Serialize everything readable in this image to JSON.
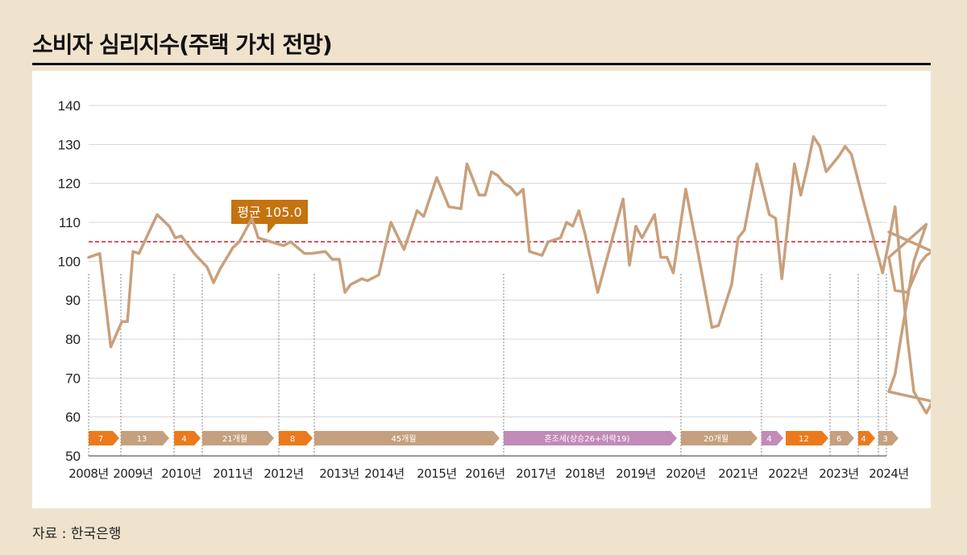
{
  "title": "소비자 심리지수(주택 가치 전망)",
  "source": "자료 : 한국은행",
  "colors": {
    "line": "#c8a07c",
    "avg": "#cc1f2c",
    "callout": "#c4730f",
    "orange": "#ec7a1c",
    "tan": "#c4a07e",
    "purple": "#c28ab8"
  },
  "chart_data": {
    "type": "line",
    "ylim": [
      50,
      140
    ],
    "yticks": [
      "140",
      "130",
      "120",
      "110",
      "100",
      "90",
      "80",
      "70",
      "60",
      "50"
    ],
    "xticks": [
      "2008년",
      "2009년",
      "2010년",
      "2011년",
      "2012년",
      "2013년",
      "2014년",
      "2015년",
      "2016년",
      "2017년",
      "2018년",
      "2019년",
      "2020년",
      "2021년",
      "2022년",
      "2023년",
      "2024년"
    ],
    "average": {
      "value": 105.0,
      "label": "평균 105.0"
    },
    "series": [
      {
        "values": [
          [
            2008.0,
            101
          ],
          [
            2008.25,
            102
          ],
          [
            2008.5,
            78
          ],
          [
            2008.75,
            84.5
          ],
          [
            2008.875,
            84.5
          ],
          [
            2009.0,
            102.5
          ],
          [
            2009.125,
            102
          ],
          [
            2009.5,
            112
          ],
          [
            2009.75,
            109
          ],
          [
            2009.875,
            106
          ],
          [
            2010.0,
            106.5
          ],
          [
            2010.25,
            102
          ],
          [
            2010.5,
            98.5
          ],
          [
            2010.625,
            94.5
          ],
          [
            2010.75,
            98
          ],
          [
            2011.0,
            103.5
          ],
          [
            2011.125,
            105
          ],
          [
            2011.375,
            111
          ],
          [
            2011.5,
            106
          ],
          [
            2011.75,
            105
          ],
          [
            2012.0,
            104
          ],
          [
            2012.125,
            105
          ],
          [
            2012.375,
            102
          ],
          [
            2012.5,
            102
          ],
          [
            2012.75,
            102.5
          ],
          [
            2012.875,
            100.5
          ],
          [
            2013.0,
            100.5
          ],
          [
            2013.125,
            92
          ],
          [
            2013.25,
            94
          ],
          [
            2013.5,
            95.5
          ],
          [
            2013.625,
            95
          ],
          [
            2013.875,
            96.5
          ],
          [
            2014.125,
            110
          ],
          [
            2014.375,
            103
          ],
          [
            2014.625,
            113
          ],
          [
            2014.75,
            111.5
          ],
          [
            2015.0,
            121.5
          ],
          [
            2015.25,
            114
          ],
          [
            2015.5,
            113.5
          ],
          [
            2015.625,
            125
          ],
          [
            2015.875,
            117
          ],
          [
            2016.0,
            117
          ],
          [
            2016.125,
            123
          ],
          [
            2016.25,
            122
          ],
          [
            2016.375,
            120
          ],
          [
            2016.5,
            119
          ],
          [
            2016.625,
            117
          ],
          [
            2016.75,
            118.5
          ],
          [
            2016.875,
            102.5
          ],
          [
            2017.125,
            101.5
          ],
          [
            2017.25,
            105
          ],
          [
            2017.5,
            106
          ],
          [
            2017.625,
            110
          ],
          [
            2017.75,
            109
          ],
          [
            2017.875,
            113
          ],
          [
            2018.0,
            107
          ],
          [
            2018.25,
            92
          ],
          [
            2018.5,
            104
          ],
          [
            2018.75,
            116
          ],
          [
            2018.875,
            99
          ],
          [
            2019.0,
            109
          ],
          [
            2019.125,
            106
          ],
          [
            2019.375,
            112
          ],
          [
            2019.5,
            101
          ],
          [
            2019.625,
            101
          ],
          [
            2019.75,
            97
          ],
          [
            2020.0,
            118.5
          ],
          [
            2020.25,
            101
          ],
          [
            2020.5,
            83
          ],
          [
            2020.625,
            83.5
          ],
          [
            2020.875,
            94
          ],
          [
            2021.0,
            106
          ],
          [
            2021.125,
            108
          ],
          [
            2021.375,
            125
          ],
          [
            2021.625,
            112
          ],
          [
            2021.75,
            111
          ],
          [
            2021.875,
            95.5
          ],
          [
            2022.125,
            125
          ],
          [
            2022.25,
            117
          ],
          [
            2022.375,
            124
          ],
          [
            2022.5,
            132
          ],
          [
            2022.625,
            129.5
          ],
          [
            2022.75,
            123
          ],
          [
            2023.0,
            127
          ],
          [
            2023.125,
            129.5
          ],
          [
            2023.25,
            127.5
          ],
          [
            2023.5,
            115
          ],
          [
            2023.75,
            103
          ],
          [
            2023.875,
            97
          ],
          [
            2024.0,
            105
          ],
          [
            2024.125,
            114
          ],
          [
            2024.375,
            80
          ],
          [
            2024.5,
            66.5
          ],
          [
            2024.75,
            61
          ],
          [
            2024.875,
            64
          ],
          [
            2025.0,
            66.5
          ],
          [
            2025.125,
            71
          ],
          [
            2025.25,
            81
          ],
          [
            2025.5,
            100
          ],
          [
            2025.75,
            109.5
          ],
          [
            2026.0,
            101
          ],
          [
            2026.125,
            92.5
          ],
          [
            2026.375,
            92
          ],
          [
            2026.625,
            99.5
          ],
          [
            2026.75,
            101.5
          ],
          [
            2026.875,
            102.5
          ],
          [
            2027.0,
            107.5
          ]
        ]
      }
    ],
    "periods": [
      {
        "label": "7",
        "color": "orange"
      },
      {
        "label": "13",
        "color": "tan"
      },
      {
        "label": "4",
        "color": "orange"
      },
      {
        "label": "21개월",
        "color": "tan"
      },
      {
        "label": "8",
        "color": "orange"
      },
      {
        "label": "45개월",
        "color": "tan"
      },
      {
        "label": "혼조세(상승26+하락19)",
        "color": "purple"
      },
      {
        "label": "20개월",
        "color": "tan"
      },
      {
        "label": "4",
        "color": "purple"
      },
      {
        "label": "12",
        "color": "orange"
      },
      {
        "label": "6",
        "color": "tan"
      },
      {
        "label": "4",
        "color": "orange"
      },
      {
        "label": "3",
        "color": "tan"
      }
    ]
  }
}
